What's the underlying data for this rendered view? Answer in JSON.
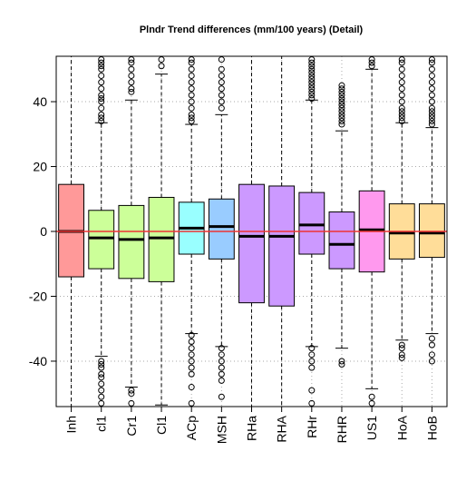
{
  "chart_data": {
    "type": "boxplot",
    "title": "Plndr Trend differences (mm/100 years) (Detail)",
    "xlabel": "",
    "ylabel": "",
    "ylim": [
      -54,
      54
    ],
    "yticks": [
      -40,
      -20,
      0,
      20,
      40
    ],
    "grid": true,
    "reference_line": {
      "y": 0,
      "color": "#ee3333"
    },
    "categories": [
      "Inh",
      "cl1",
      "Cr1",
      "Cl1",
      "ACp",
      "MSH",
      "RHa",
      "RHA",
      "RHr",
      "RHR",
      "US1",
      "HoA",
      "HoB"
    ],
    "boxes": [
      {
        "label": "Inh",
        "color": "#ff9999",
        "q1": -14,
        "median": 0,
        "q3": 14.5,
        "whisker_low": -54,
        "whisker_high": 54,
        "outliers": []
      },
      {
        "label": "cl1",
        "color": "#ccff99",
        "q1": -11.5,
        "median": -2,
        "q3": 6.5,
        "whisker_low": -38.5,
        "whisker_high": 33.5,
        "outliers": [
          34,
          35,
          36,
          38,
          40,
          41,
          42,
          44,
          46,
          48,
          50,
          51,
          52,
          53,
          -40,
          -41,
          -42,
          -44,
          -45,
          -47,
          -49,
          -51,
          -53
        ]
      },
      {
        "label": "Cr1",
        "color": "#ccff99",
        "q1": -14.5,
        "median": -2.5,
        "q3": 8,
        "whisker_low": -48,
        "whisker_high": 40.5,
        "outliers": [
          43,
          44,
          46,
          48,
          50,
          52,
          53,
          -49,
          -50,
          -53
        ]
      },
      {
        "label": "Cl1",
        "color": "#ccff99",
        "q1": -15.5,
        "median": -2,
        "q3": 10.5,
        "whisker_low": -53.5,
        "whisker_high": 48.5,
        "outliers": [
          51,
          53
        ]
      },
      {
        "label": "ACp",
        "color": "#99ffff",
        "q1": -7,
        "median": 1,
        "q3": 9,
        "whisker_low": -31.5,
        "whisker_high": 33,
        "outliers": [
          34,
          35,
          36,
          38,
          40,
          42,
          44,
          46,
          48,
          50,
          52,
          53,
          -32,
          -34,
          -36,
          -38,
          -40,
          -42,
          -44,
          -48,
          -53
        ]
      },
      {
        "label": "MSH",
        "color": "#99ccff",
        "q1": -8.5,
        "median": 1.5,
        "q3": 10,
        "whisker_low": -35.5,
        "whisker_high": 36,
        "outliers": [
          38,
          40,
          42,
          44,
          46,
          48,
          50,
          53,
          -36,
          -38,
          -40,
          -42,
          -44,
          -46,
          -51
        ]
      },
      {
        "label": "RHa",
        "color": "#cc99ff",
        "q1": -22,
        "median": -1.5,
        "q3": 14.5,
        "whisker_low": -54,
        "whisker_high": 54,
        "outliers": []
      },
      {
        "label": "RHA",
        "color": "#cc99ff",
        "q1": -23,
        "median": -1.5,
        "q3": 14,
        "whisker_low": -54,
        "whisker_high": 54,
        "outliers": []
      },
      {
        "label": "RHr",
        "color": "#cc99ff",
        "q1": -7,
        "median": 2,
        "q3": 12,
        "whisker_low": -35.5,
        "whisker_high": 40.5,
        "outliers": [
          41,
          42,
          43,
          44,
          45,
          46,
          47,
          48,
          49,
          50,
          51,
          52,
          53,
          -36,
          -38,
          -40,
          -42,
          -49,
          -53
        ]
      },
      {
        "label": "RHR",
        "color": "#cc99ff",
        "q1": -11.5,
        "median": -4,
        "q3": 6,
        "whisker_low": -36,
        "whisker_high": 31,
        "outliers": [
          33,
          34,
          35,
          36,
          37,
          38,
          39,
          40,
          41,
          42,
          43,
          44,
          45,
          -40,
          -41
        ]
      },
      {
        "label": "US1",
        "color": "#ff99ee",
        "q1": -12.5,
        "median": 0.5,
        "q3": 12.5,
        "whisker_low": -48.5,
        "whisker_high": 50,
        "outliers": [
          51,
          52,
          53,
          -51,
          -53
        ]
      },
      {
        "label": "HoA",
        "color": "#ffdd99",
        "q1": -8.5,
        "median": -0.5,
        "q3": 8.5,
        "whisker_low": -33.5,
        "whisker_high": 33.5,
        "outliers": [
          34,
          35,
          36,
          37,
          38,
          40,
          42,
          44,
          46,
          48,
          50,
          52,
          53,
          -35,
          -36,
          -38,
          -39
        ]
      },
      {
        "label": "HoB",
        "color": "#ffdd99",
        "q1": -8,
        "median": -0.5,
        "q3": 8.5,
        "whisker_low": -31.5,
        "whisker_high": 32,
        "outliers": [
          33,
          34,
          35,
          36,
          37,
          38,
          40,
          42,
          44,
          46,
          48,
          50,
          52,
          53,
          -33,
          -35,
          -38,
          -40
        ]
      }
    ]
  }
}
